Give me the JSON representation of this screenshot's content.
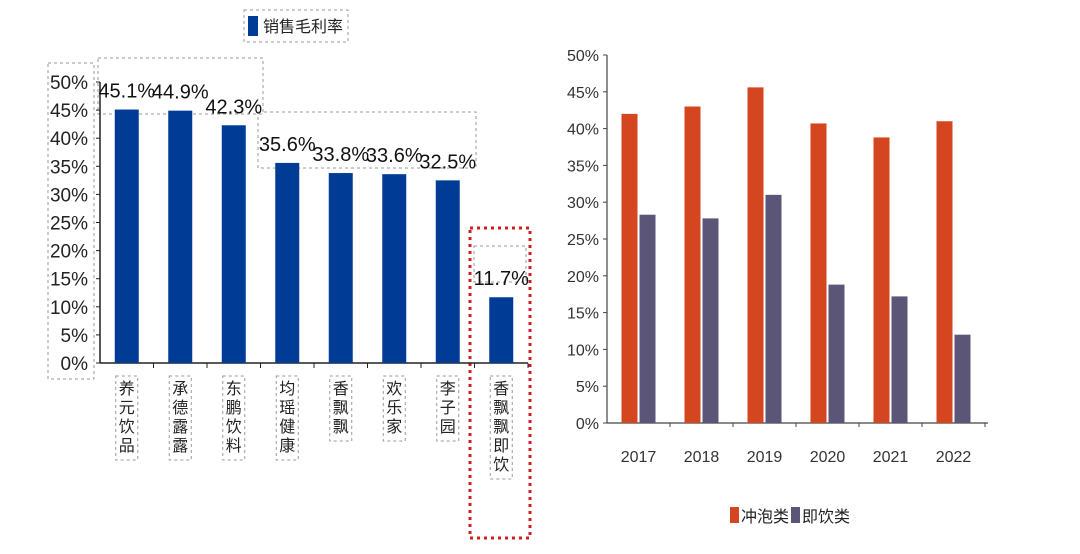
{
  "chart_data": [
    {
      "type": "bar",
      "legend": [
        "销售毛利率"
      ],
      "legend_position": "top",
      "categories": [
        "养元饮品",
        "承德露露",
        "东鹏饮料",
        "均瑶健康",
        "香飘飘",
        "欢乐家",
        "李子园",
        "香飘飘即饮"
      ],
      "series": [
        {
          "name": "销售毛利率",
          "values": [
            45.1,
            44.9,
            42.3,
            35.6,
            33.8,
            33.6,
            32.5,
            11.7
          ],
          "color": "#003c96"
        }
      ],
      "data_labels": [
        "45.1%",
        "44.9%",
        "42.3%",
        "35.6%",
        "33.8%",
        "33.6%",
        "32.5%",
        "11.7%"
      ],
      "yticks": [
        "0%",
        "5%",
        "10%",
        "15%",
        "20%",
        "25%",
        "30%",
        "35%",
        "40%",
        "45%",
        "50%"
      ],
      "ylim": [
        0,
        50
      ],
      "highlight_category": "香飘飘即饮",
      "highlight_color": "#cc1f1f"
    },
    {
      "type": "bar",
      "categories": [
        "2017",
        "2018",
        "2019",
        "2020",
        "2021",
        "2022"
      ],
      "series": [
        {
          "name": "冲泡类",
          "values": [
            42.0,
            43.0,
            45.6,
            40.7,
            38.8,
            41.0
          ],
          "color": "#d4461f"
        },
        {
          "name": "即饮类",
          "values": [
            28.3,
            27.8,
            31.0,
            18.8,
            17.2,
            12.0
          ],
          "color": "#5b5578"
        }
      ],
      "yticks": [
        "0%",
        "5%",
        "10%",
        "15%",
        "20%",
        "25%",
        "30%",
        "35%",
        "40%",
        "45%",
        "50%"
      ],
      "ylim": [
        0,
        50
      ],
      "legend_position": "bottom"
    }
  ]
}
